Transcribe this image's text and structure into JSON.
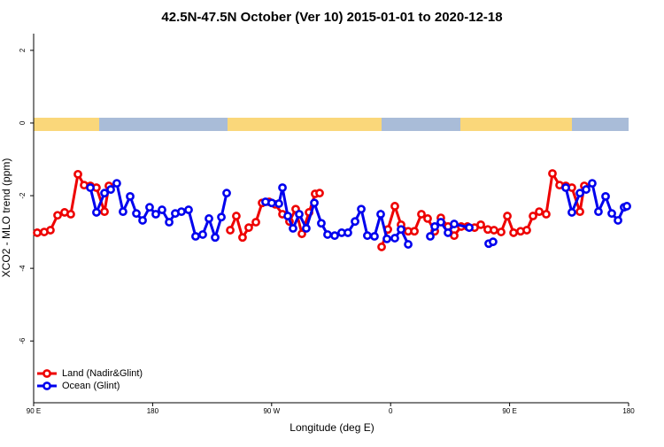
{
  "chart_data": {
    "type": "line",
    "title": "42.5N-47.5N October (Ver 10)   2015-01-01 to 2020-12-18",
    "x_label": "Longitude (deg E)",
    "y_label": "XCO2 - MLO trend (ppm)",
    "xlim": [
      90,
      540
    ],
    "ylim": [
      -7.7,
      2.46
    ],
    "xticks": [
      {
        "value": 90,
        "label": "90 E"
      },
      180,
      {
        "value": 270,
        "label": "90 W"
      },
      {
        "value": 360,
        "label": "0"
      },
      {
        "value": 450,
        "label": "90 E"
      },
      {
        "value": 540,
        "label": "180"
      }
    ],
    "yticks": [
      2,
      0,
      -2,
      -4,
      -6
    ],
    "legend": "bottom-left",
    "series": [
      {
        "name": "Land (Nadir&Glint)",
        "color": "#ee0000",
        "x": [
          92.7,
          98.0,
          102.7,
          108.1,
          113.4,
          118.1,
          123.5,
          128.2,
          132.9,
          137.5,
          143.6,
          146.9,
          190,
          238.7,
          243.3,
          248.0,
          252.7,
          258.1,
          262.8,
          268.1,
          272.8,
          278.2,
          283.5,
          288.2,
          292.9,
          298.3,
          302.9,
          306.3,
          330,
          353.2,
          357.9,
          363.2,
          367.9,
          373.3,
          378.0,
          383.3,
          388.0,
          393.4,
          398.0,
          403.4,
          408.1,
          413.4,
          418.1,
          423.5,
          428.2,
          433.5,
          438.2,
          443.6,
          448.3,
          453.0,
          458.3,
          463.0,
          467.7,
          472.4,
          477.7,
          482.4,
          487.8,
          492.5,
          497.1,
          503.2,
          506.5
        ],
        "values": [
          -3.02,
          -3.0,
          -2.95,
          -2.54,
          -2.46,
          -2.51,
          -1.41,
          -1.71,
          -1.73,
          -1.78,
          -2.44,
          -1.73,
          null,
          -2.95,
          -2.56,
          -3.15,
          -2.88,
          -2.73,
          -2.2,
          -2.17,
          -2.24,
          -2.51,
          -2.71,
          -2.37,
          -3.05,
          -2.46,
          -1.95,
          -1.93,
          null,
          -3.41,
          -2.93,
          -2.29,
          -2.8,
          -2.98,
          -2.98,
          -2.51,
          -2.63,
          -2.98,
          -2.61,
          -2.85,
          -3.1,
          -2.85,
          -2.85,
          -2.88,
          -2.8,
          -2.93,
          -2.95,
          -3.0,
          -2.56,
          -3.02,
          -2.98,
          -2.95,
          -2.56,
          -2.44,
          -2.51,
          -1.39,
          -1.71,
          -1.73,
          -1.78,
          -2.44,
          -1.73
        ]
      },
      {
        "name": "Ocean (Glint)",
        "color": "#0000ee",
        "x": [
          132.9,
          137.5,
          143.6,
          148.3,
          152.9,
          157.6,
          163.0,
          167.7,
          172.4,
          177.7,
          182.4,
          187.1,
          192.5,
          197.1,
          201.8,
          207.2,
          212.5,
          217.9,
          222.6,
          227.3,
          232.0,
          236.0,
          250.7,
          265.4,
          270.1,
          275.5,
          278.2,
          282.2,
          286.2,
          290.9,
          296.2,
          302.3,
          307.6,
          312.3,
          317.7,
          323.0,
          327.7,
          333.1,
          337.8,
          342.4,
          347.8,
          352.5,
          357.2,
          363.2,
          367.9,
          373.3,
          382,
          390.0,
          393.4,
          398.0,
          403.4,
          408.1,
          419.5,
          427,
          434.2,
          437.5,
          465,
          492.5,
          497.1,
          503.2,
          507.9,
          512.5,
          517.2,
          522.6,
          527.3,
          532.0,
          536.6,
          538.7
        ],
        "values": [
          -1.78,
          -2.46,
          -1.93,
          -1.83,
          -1.66,
          -2.44,
          -2.02,
          -2.49,
          -2.68,
          -2.32,
          -2.51,
          -2.39,
          -2.73,
          -2.49,
          -2.44,
          -2.39,
          -3.12,
          -3.07,
          -2.63,
          -3.15,
          -2.59,
          -1.93,
          null,
          -2.17,
          -2.2,
          -2.22,
          -1.78,
          -2.56,
          -2.9,
          -2.51,
          -2.9,
          -2.2,
          -2.76,
          -3.07,
          -3.1,
          -3.02,
          -3.02,
          -2.71,
          -2.37,
          -3.1,
          -3.12,
          -2.51,
          -3.19,
          -3.17,
          -2.93,
          -3.34,
          null,
          -3.12,
          -2.85,
          -2.73,
          -3.02,
          -2.78,
          -2.88,
          null,
          -3.32,
          -3.27,
          null,
          -1.78,
          -2.46,
          -1.93,
          -1.83,
          -1.66,
          -2.44,
          -2.02,
          -2.49,
          -2.68,
          -2.32,
          -2.29
        ]
      }
    ]
  }
}
